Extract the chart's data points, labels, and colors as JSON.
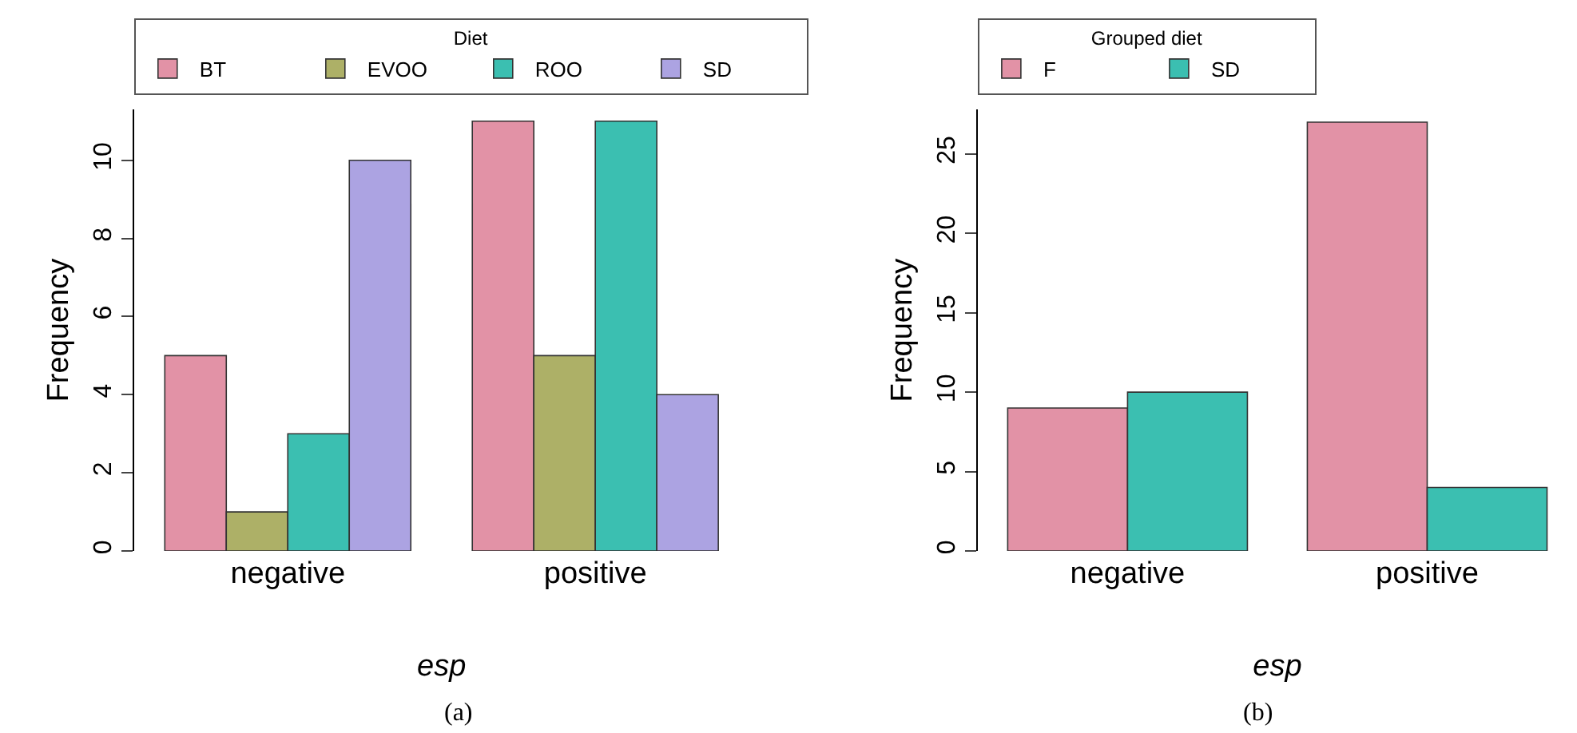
{
  "chart_data": [
    {
      "type": "bar",
      "categories": [
        "negative",
        "positive"
      ],
      "xlabel": "esp",
      "ylabel": "Frequency",
      "legend_title": "Diet",
      "legend": "top left",
      "ylim": [
        0,
        11.3
      ],
      "yticks": [
        0,
        2,
        4,
        6,
        8,
        10
      ],
      "annotations": [
        "(a)"
      ],
      "series": [
        {
          "name": "BT",
          "color": "#e292a6",
          "values": [
            5,
            11
          ]
        },
        {
          "name": "EVOO",
          "color": "#adb067",
          "values": [
            1,
            5
          ]
        },
        {
          "name": "ROO",
          "color": "#3bbfb1",
          "values": [
            3,
            11
          ]
        },
        {
          "name": "SD",
          "color": "#aca3e2",
          "values": [
            10,
            4
          ]
        }
      ]
    },
    {
      "type": "bar",
      "categories": [
        "negative",
        "positive"
      ],
      "xlabel": "esp",
      "ylabel": "Frequency",
      "legend_title": "Grouped diet",
      "legend": "top left",
      "ylim": [
        0,
        27.8
      ],
      "yticks": [
        0,
        5,
        10,
        15,
        20,
        25
      ],
      "annotations": [
        "(b)"
      ],
      "series": [
        {
          "name": "F",
          "color": "#e292a6",
          "values": [
            9,
            27
          ]
        },
        {
          "name": "SD",
          "color": "#3bbfb1",
          "values": [
            10,
            4
          ]
        }
      ]
    }
  ]
}
